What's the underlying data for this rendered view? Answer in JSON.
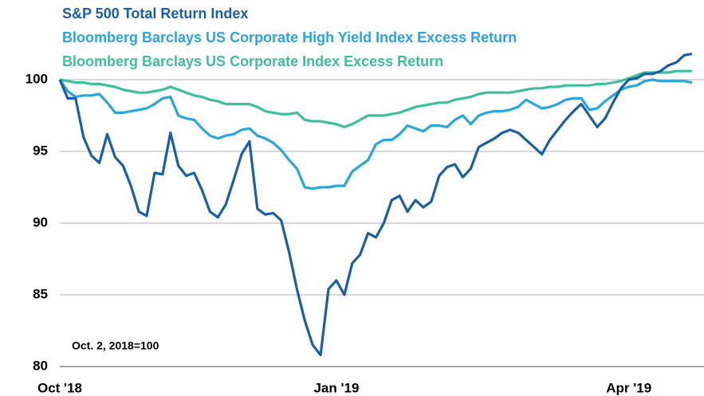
{
  "chart_data": {
    "type": "line",
    "annotation": "Oct. 2, 2018=100",
    "categories": [
      "Oct '18",
      null,
      null,
      null,
      null,
      null,
      null,
      null,
      null,
      null,
      null,
      null,
      null,
      null,
      null,
      null,
      null,
      null,
      null,
      null,
      null,
      null,
      null,
      null,
      null,
      null,
      null,
      null,
      null,
      null,
      null,
      null,
      null,
      null,
      null,
      "Jan '19",
      null,
      null,
      null,
      null,
      null,
      null,
      null,
      null,
      null,
      null,
      null,
      null,
      null,
      null,
      null,
      null,
      null,
      null,
      null,
      null,
      null,
      null,
      null,
      null,
      null,
      null,
      null,
      null,
      null,
      null,
      null,
      null,
      null,
      null,
      null,
      null,
      "Apr '19",
      null,
      null,
      null,
      null,
      null,
      null,
      null,
      null
    ],
    "series": [
      {
        "name": "S&P 500 Total Return Index",
        "color": "#1a5ea8",
        "values": [
          100,
          98.7,
          98.7,
          96,
          94.7,
          94.2,
          96.2,
          94.6,
          94,
          92.6,
          90.8,
          90.5,
          93.5,
          93.4,
          96.3,
          94,
          93.3,
          93.5,
          92.3,
          90.8,
          90.4,
          91.3,
          93,
          94.8,
          95.7,
          91,
          90.6,
          90.7,
          90.2,
          88,
          85.4,
          83.2,
          81.5,
          80.8,
          85.4,
          86,
          85,
          87.2,
          87.8,
          89.3,
          89,
          90,
          91.6,
          91.9,
          90.8,
          91.6,
          91.1,
          91.5,
          93.3,
          93.9,
          94.1,
          93.2,
          93.8,
          95.3,
          95.6,
          95.9,
          96.3,
          96.5,
          96.3,
          95.8,
          95.3,
          94.8,
          95.8,
          96.5,
          97.2,
          97.8,
          98.3,
          97.5,
          96.7,
          97.3,
          98.4,
          99.4,
          100,
          100.1,
          100.4,
          100.4,
          100.6,
          101,
          101.2,
          101.7,
          101.8
        ]
      },
      {
        "name": "Bloomberg Barclays US Corporate High Yield Index Excess Return",
        "color": "#27a6e0",
        "values": [
          100,
          99.2,
          98.8,
          98.9,
          98.9,
          99,
          98.4,
          97.7,
          97.7,
          97.8,
          97.9,
          98,
          98.3,
          98.7,
          98.8,
          97.5,
          97.3,
          97.2,
          96.6,
          96.1,
          95.9,
          96.1,
          96.2,
          96.5,
          96.6,
          96.1,
          95.9,
          95.6,
          95.1,
          94.4,
          93.8,
          92.5,
          92.4,
          92.5,
          92.5,
          92.6,
          92.6,
          93.6,
          94,
          94.4,
          95.5,
          95.8,
          95.8,
          96.2,
          96.8,
          96.6,
          96.4,
          96.8,
          96.8,
          96.7,
          97.2,
          97.5,
          96.9,
          97.5,
          97.7,
          97.8,
          97.8,
          97.9,
          98.1,
          98.6,
          98.3,
          98,
          98.1,
          98.3,
          98.6,
          98.7,
          98.7,
          97.9,
          98,
          98.5,
          98.9,
          99.3,
          99.5,
          99.6,
          99.9,
          100,
          99.9,
          99.9,
          99.9,
          99.9,
          99.8
        ]
      },
      {
        "name": "Bloomberg Barclays US Corporate Index Excess Return",
        "color": "#3dbf9b",
        "values": [
          100,
          99.9,
          99.8,
          99.8,
          99.7,
          99.7,
          99.6,
          99.5,
          99.3,
          99.2,
          99.1,
          99.1,
          99.2,
          99.3,
          99.5,
          99.3,
          99.1,
          98.9,
          98.8,
          98.6,
          98.5,
          98.3,
          98.3,
          98.3,
          98.3,
          98.1,
          97.8,
          97.7,
          97.6,
          97.6,
          97.7,
          97.2,
          97.1,
          97.1,
          97,
          96.9,
          96.7,
          96.9,
          97.2,
          97.5,
          97.5,
          97.5,
          97.6,
          97.7,
          97.9,
          98.1,
          98.2,
          98.3,
          98.4,
          98.4,
          98.6,
          98.7,
          98.8,
          99,
          99.1,
          99.1,
          99.1,
          99.1,
          99.2,
          99.3,
          99.4,
          99.4,
          99.5,
          99.5,
          99.6,
          99.6,
          99.6,
          99.6,
          99.7,
          99.7,
          99.8,
          99.9,
          100.1,
          100.3,
          100.5,
          100.5,
          100.5,
          100.5,
          100.6,
          100.6,
          100.6
        ]
      }
    ],
    "ylim": [
      80,
      102
    ],
    "yticks": [
      80,
      85,
      90,
      95,
      100
    ],
    "grid": true
  }
}
